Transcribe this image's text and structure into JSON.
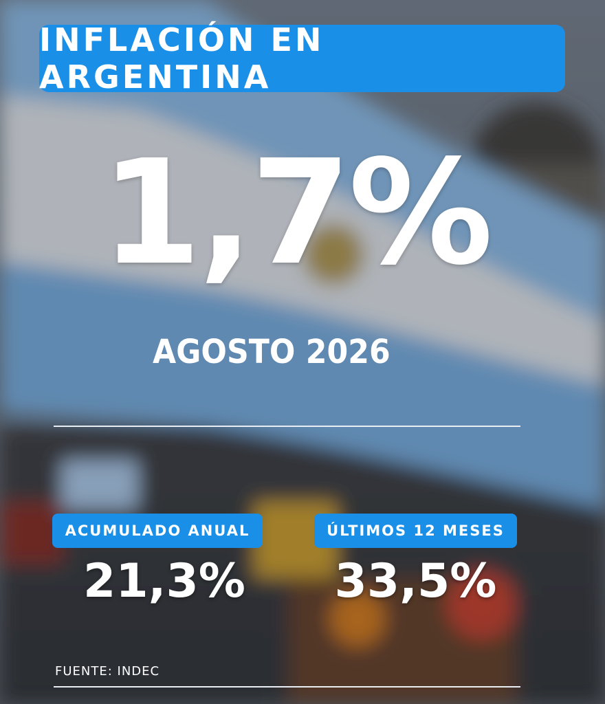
{
  "header": {
    "title": "INFLACIÓN EN ARGENTINA"
  },
  "headline": {
    "value": "1,7%",
    "period": "AGOSTO 2026"
  },
  "stats": [
    {
      "label": "ACUMULADO ANUAL",
      "value": "21,3%"
    },
    {
      "label": "ÚLTIMOS 12 MESES",
      "value": "33,5%"
    }
  ],
  "footer": {
    "source": "FUENTE: INDEC"
  }
}
